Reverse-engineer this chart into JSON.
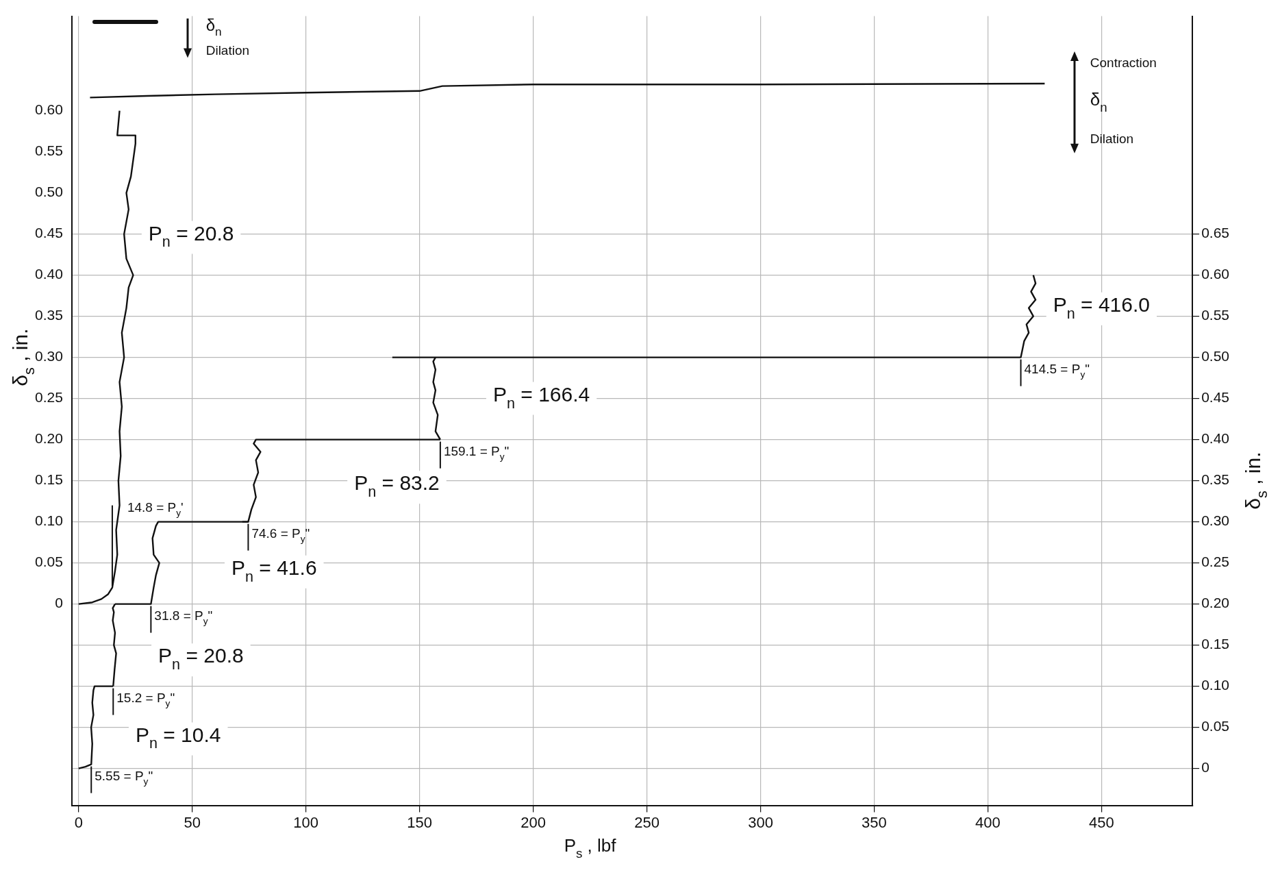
{
  "chart_data": {
    "type": "line",
    "xlabel": "P$_{s}$ , lbf",
    "ylabel": "δ$_{s}$ , in.",
    "y2label": "δ$_{s}$ , in.",
    "xlim": [
      -3,
      490
    ],
    "xticks": [
      0,
      50,
      100,
      150,
      200,
      250,
      300,
      350,
      400,
      450
    ],
    "ylim": [
      -0.245,
      0.715
    ],
    "yticks": [
      0,
      0.05,
      {
        "value": 0.1,
        "label": "0.10"
      },
      0.15,
      {
        "value": 0.2,
        "label": "0.20"
      },
      0.25,
      {
        "value": 0.3,
        "label": "0.30"
      },
      0.35,
      {
        "value": 0.4,
        "label": "0.40"
      },
      0.45,
      {
        "value": 0.5,
        "label": "0.50"
      },
      0.55,
      {
        "value": 0.6,
        "label": "0.60"
      }
    ],
    "y2lim": [
      -0.045,
      0.915
    ],
    "y2ticks": [
      0,
      0.05,
      {
        "value": 0.1,
        "label": "0.10"
      },
      0.15,
      {
        "value": 0.2,
        "label": "0.20"
      },
      0.25,
      {
        "value": 0.3,
        "label": "0.30"
      },
      0.35,
      {
        "value": 0.4,
        "label": "0.40"
      },
      0.45,
      {
        "value": 0.5,
        "label": "0.50"
      },
      0.55,
      {
        "value": 0.6,
        "label": "0.60"
      },
      0.65
    ],
    "grid": true,
    "legend": false,
    "marker": "none",
    "line_style": "solid",
    "series": [
      {
        "color": "#111111",
        "axis": "y2",
        "x": [
          0,
          3,
          5.55,
          6,
          5.5,
          6.5,
          6,
          6.5,
          7,
          15.2
        ],
        "values": [
          0,
          0.002,
          0.005,
          0.03,
          0.05,
          0.065,
          0.08,
          0.095,
          0.1,
          0.1
        ]
      },
      {
        "color": "#111111",
        "axis": "y2",
        "x": [
          15.2,
          15.8,
          16.5,
          15.5,
          16,
          15,
          15.5,
          15,
          16
        ],
        "values": [
          0.1,
          0.12,
          0.14,
          0.15,
          0.165,
          0.18,
          0.19,
          0.195,
          0.2
        ]
      },
      {
        "color": "#111111",
        "x": [
          16,
          31.8,
          33,
          34,
          35.5,
          33,
          32.5,
          34,
          35,
          74.6
        ],
        "values": [
          0,
          0,
          0.02,
          0.035,
          0.05,
          0.06,
          0.08,
          0.095,
          0.1,
          0.1
        ]
      },
      {
        "color": "#111111",
        "x": [
          0,
          6,
          10,
          13,
          14.8,
          16,
          17,
          16.5,
          18,
          17.5,
          18.5,
          18,
          19,
          18,
          20,
          19,
          21,
          22,
          24,
          21,
          20,
          22,
          21,
          23,
          24,
          25,
          25,
          17,
          18
        ],
        "values": [
          0,
          0.002,
          0.006,
          0.012,
          0.02,
          0.04,
          0.06,
          0.09,
          0.12,
          0.15,
          0.18,
          0.21,
          0.24,
          0.27,
          0.3,
          0.33,
          0.36,
          0.385,
          0.4,
          0.42,
          0.45,
          0.48,
          0.5,
          0.52,
          0.54,
          0.56,
          0.57,
          0.57,
          0.6
        ]
      },
      {
        "color": "#111111",
        "x": [
          72,
          74.6,
          76,
          78,
          77,
          79,
          78,
          80,
          77,
          78,
          159.1
        ],
        "values": [
          0.1,
          0.1,
          0.115,
          0.13,
          0.145,
          0.16,
          0.175,
          0.185,
          0.195,
          0.2,
          0.2
        ]
      },
      {
        "color": "#111111",
        "x": [
          159.1,
          157,
          158,
          156,
          157,
          156,
          157,
          156,
          157
        ],
        "values": [
          0.2,
          0.21,
          0.23,
          0.245,
          0.26,
          0.27,
          0.285,
          0.295,
          0.3
        ]
      },
      {
        "color": "#111111",
        "x": [
          138,
          300,
          405,
          412,
          414.5,
          416,
          418,
          417,
          420,
          418,
          421,
          419,
          421,
          420
        ],
        "values": [
          0.3,
          0.3,
          0.3,
          0.3,
          0.3,
          0.32,
          0.33,
          0.34,
          0.35,
          0.36,
          0.37,
          0.38,
          0.39,
          0.4
        ]
      },
      {
        "color": "#111111",
        "x": [
          5,
          30,
          60,
          100,
          150,
          160,
          200,
          300,
          425
        ],
        "values": [
          0.616,
          0.618,
          0.62,
          0.622,
          0.624,
          0.63,
          0.632,
          0.632,
          0.633
        ]
      }
    ],
    "annotations": [
      "P$_{n}$ = 20.8",
      "P$_{n}$ = 416.0",
      "P$_{n}$ = 166.4",
      "P$_{n}$ = 83.2",
      "P$_{n}$ = 41.6",
      "P$_{n}$ = 20.8",
      "P$_{n}$ = 10.4",
      {
        "text": "5.55 = P$_{y}$\"",
        "x": 5.55,
        "y": -0.195
      },
      {
        "text": "15.2 = P$_{y}$\"",
        "x": 15.2,
        "y": -0.1
      },
      {
        "text": "14.8 = P$_{y}$'",
        "x": 14.8,
        "y": 0.02
      },
      {
        "text": "31.8 = P$_{y}$\"",
        "x": 31.8,
        "y": 0
      },
      {
        "text": "74.6 = P$_{y}$\"",
        "x": 74.6,
        "y": 0.1
      },
      {
        "text": "159.1 = P$_{y}$\"",
        "x": 159.1,
        "y": 0.2
      },
      {
        "text": "414.5 = P$_{y}$\"",
        "x": 414.5,
        "y": 0.3
      },
      "δ$_{n}$",
      "Dilation",
      "Contraction",
      "δ$_{n}$",
      "Dilation"
    ]
  }
}
